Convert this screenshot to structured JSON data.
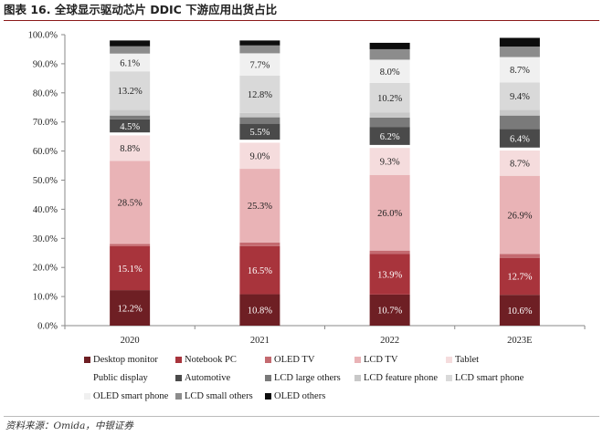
{
  "title": "图表 16. 全球显示驱动芯片 DDIC 下游应用出货占比",
  "source": "资料来源：Omida，中银证券",
  "chart_data": {
    "type": "bar",
    "stacked": true,
    "categories": [
      "2020",
      "2021",
      "2022",
      "2023E"
    ],
    "ylim": [
      0,
      100
    ],
    "yticks": [
      "0.0%",
      "10.0%",
      "20.0%",
      "30.0%",
      "40.0%",
      "50.0%",
      "60.0%",
      "70.0%",
      "80.0%",
      "90.0%",
      "100.0%"
    ],
    "legend_position": "bottom",
    "series": [
      {
        "name": "Desktop monitor",
        "color": "#6e1f24",
        "values": [
          12.2,
          10.8,
          10.7,
          10.6
        ],
        "labels": [
          "12.2%",
          "10.8%",
          "10.7%",
          "10.6%"
        ]
      },
      {
        "name": "Notebook PC",
        "color": "#a8343c",
        "values": [
          15.1,
          16.5,
          13.9,
          12.7
        ],
        "labels": [
          "15.1%",
          "16.5%",
          "13.9%",
          "12.7%"
        ]
      },
      {
        "name": "OLED TV",
        "color": "#c46a70",
        "values": [
          0.8,
          1.3,
          1.2,
          1.3
        ]
      },
      {
        "name": "LCD TV",
        "color": "#e9b3b6",
        "values": [
          28.5,
          25.3,
          26.0,
          26.9
        ],
        "labels": [
          "28.5%",
          "25.3%",
          "26.0%",
          "26.9%"
        ]
      },
      {
        "name": "Tablet",
        "color": "#f5dcdd",
        "values": [
          8.8,
          9.0,
          9.3,
          8.7
        ],
        "labels": [
          "8.8%",
          "9.0%",
          "9.3%",
          "8.7%"
        ]
      },
      {
        "name": "Public display",
        "color": "#ffffff",
        "values": [
          1.0,
          1.0,
          1.0,
          1.0
        ]
      },
      {
        "name": "Automotive",
        "color": "#4a4a4a",
        "values": [
          4.5,
          5.5,
          6.2,
          6.4
        ],
        "labels": [
          "4.5%",
          "5.5%",
          "6.2%",
          "6.4%"
        ]
      },
      {
        "name": "LCD large others",
        "color": "#7a7a7a",
        "values": [
          1.3,
          2.2,
          3.2,
          4.6
        ]
      },
      {
        "name": "LCD feature phone",
        "color": "#c8c8c8",
        "values": [
          2.0,
          1.5,
          1.7,
          2.0
        ]
      },
      {
        "name": "LCD smart phone",
        "color": "#d9d9d9",
        "values": [
          13.2,
          12.8,
          10.2,
          9.4
        ],
        "labels": [
          "13.2%",
          "12.8%",
          "10.2%",
          "9.4%"
        ]
      },
      {
        "name": "OLED smart phone",
        "color": "#f0f0f0",
        "values": [
          6.1,
          7.7,
          8.0,
          8.7
        ],
        "labels": [
          "6.1%",
          "7.7%",
          "8.0%",
          "8.7%"
        ]
      },
      {
        "name": "LCD small others",
        "color": "#8c8c8c",
        "values": [
          2.5,
          2.7,
          3.6,
          3.6
        ]
      },
      {
        "name": "OLED others",
        "color": "#0d0d0d",
        "values": [
          2.0,
          1.7,
          2.2,
          3.0
        ]
      }
    ]
  }
}
